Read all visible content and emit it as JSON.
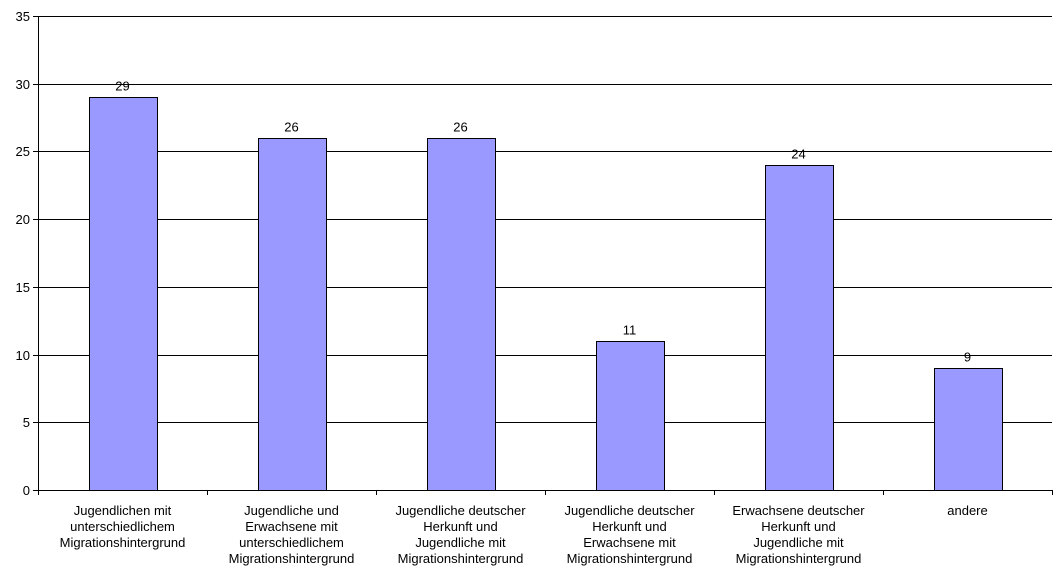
{
  "chart_data": {
    "type": "bar",
    "categories": [
      "Jugendlichen mit unterschiedlichem Migrationshintergrund",
      "Jugendliche und Erwachsene mit unterschiedlichem Migrationshintergrund",
      "Jugendliche deutscher Herkunft und Jugendliche mit Migrationshintergrund",
      "Jugendliche deutscher Herkunft und Erwachsene mit Migrationshintergrund",
      "Erwachsene deutscher Herkunft und Jugendliche mit Migrationshintergrund",
      "andere"
    ],
    "category_lines": [
      [
        "Jugendlichen mit",
        "unterschiedlichem",
        "Migrationshintergrund"
      ],
      [
        "Jugendliche und",
        "Erwachsene mit",
        "unterschiedlichem",
        "Migrationshintergrund"
      ],
      [
        "Jugendliche deutscher",
        "Herkunft und",
        "Jugendliche mit",
        "Migrationshintergrund"
      ],
      [
        "Jugendliche deutscher",
        "Herkunft und",
        "Erwachsene mit",
        "Migrationshintergrund"
      ],
      [
        "Erwachsene deutscher",
        "Herkunft und",
        "Jugendliche mit",
        "Migrationshintergrund"
      ],
      [
        "andere"
      ]
    ],
    "values": [
      29,
      26,
      26,
      11,
      24,
      9
    ],
    "data_labels": [
      "29",
      "26",
      "26",
      "11",
      "24",
      "9"
    ],
    "y_ticks": [
      "0",
      "5",
      "10",
      "15",
      "20",
      "25",
      "30",
      "35"
    ],
    "ylim": [
      0,
      35
    ],
    "grid": true,
    "title": "",
    "xlabel": "",
    "ylabel": "",
    "bar_color": "#9999ff",
    "bar_border_color": "#000000"
  }
}
